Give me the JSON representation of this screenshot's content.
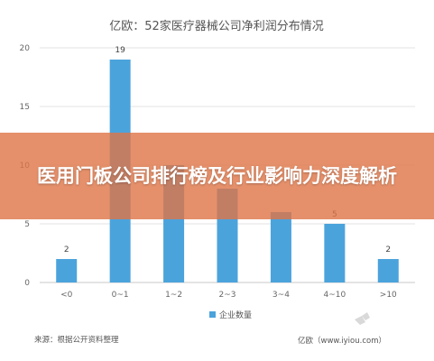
{
  "chart_data": {
    "type": "bar",
    "title": "亿欧：52家医疗器械公司净利润分布情况",
    "categories": [
      "<0",
      "0~1",
      "1~2",
      "2~3",
      "3~4",
      "4~10",
      ">10"
    ],
    "series": [
      {
        "name": "企业数量",
        "values": [
          2,
          19,
          10,
          8,
          6,
          5,
          2
        ],
        "color": "#4ba3dc"
      }
    ],
    "data_labels": [
      "2",
      "19",
      "",
      "",
      "",
      "5",
      "2"
    ],
    "y_ticks": [
      "0",
      "5",
      "10",
      "15",
      "20"
    ],
    "ylim": [
      0,
      20
    ],
    "grid": true,
    "legend_position": "bottom-center"
  },
  "source_text": "来源：根据公开资料整理",
  "watermark_text": "亿欧（www.iyiou.com）",
  "overlay": {
    "title": "医用门板公司排行榜及行业影响力深度解析",
    "color": "#de7446"
  }
}
